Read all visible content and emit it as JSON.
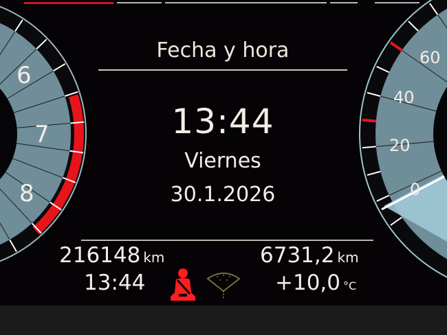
{
  "screen": {
    "title": "Fecha y hora",
    "time": "13:44",
    "weekday": "Viernes",
    "date": "30.1.2026"
  },
  "tachometer": {
    "labels": [
      "6",
      "7",
      "8"
    ],
    "redline_start": 7
  },
  "speedometer": {
    "labels": [
      "0",
      "20",
      "40",
      "60"
    ]
  },
  "status": {
    "odometer": "216148",
    "odometer_unit": "km",
    "trip": "6731,2",
    "trip_unit": "km",
    "clock": "13:44",
    "temperature": "+10,0",
    "temperature_unit": "°C",
    "warnings": [
      {
        "icon": "seatbelt-warning-icon",
        "color": "#ff1e1e"
      },
      {
        "icon": "wiper-fluid-icon",
        "color": "#7a6a3a"
      }
    ]
  },
  "colors": {
    "accent_red": "#e8141c",
    "gauge_fill": "#6f8e9a",
    "text": "#f4ece6"
  }
}
